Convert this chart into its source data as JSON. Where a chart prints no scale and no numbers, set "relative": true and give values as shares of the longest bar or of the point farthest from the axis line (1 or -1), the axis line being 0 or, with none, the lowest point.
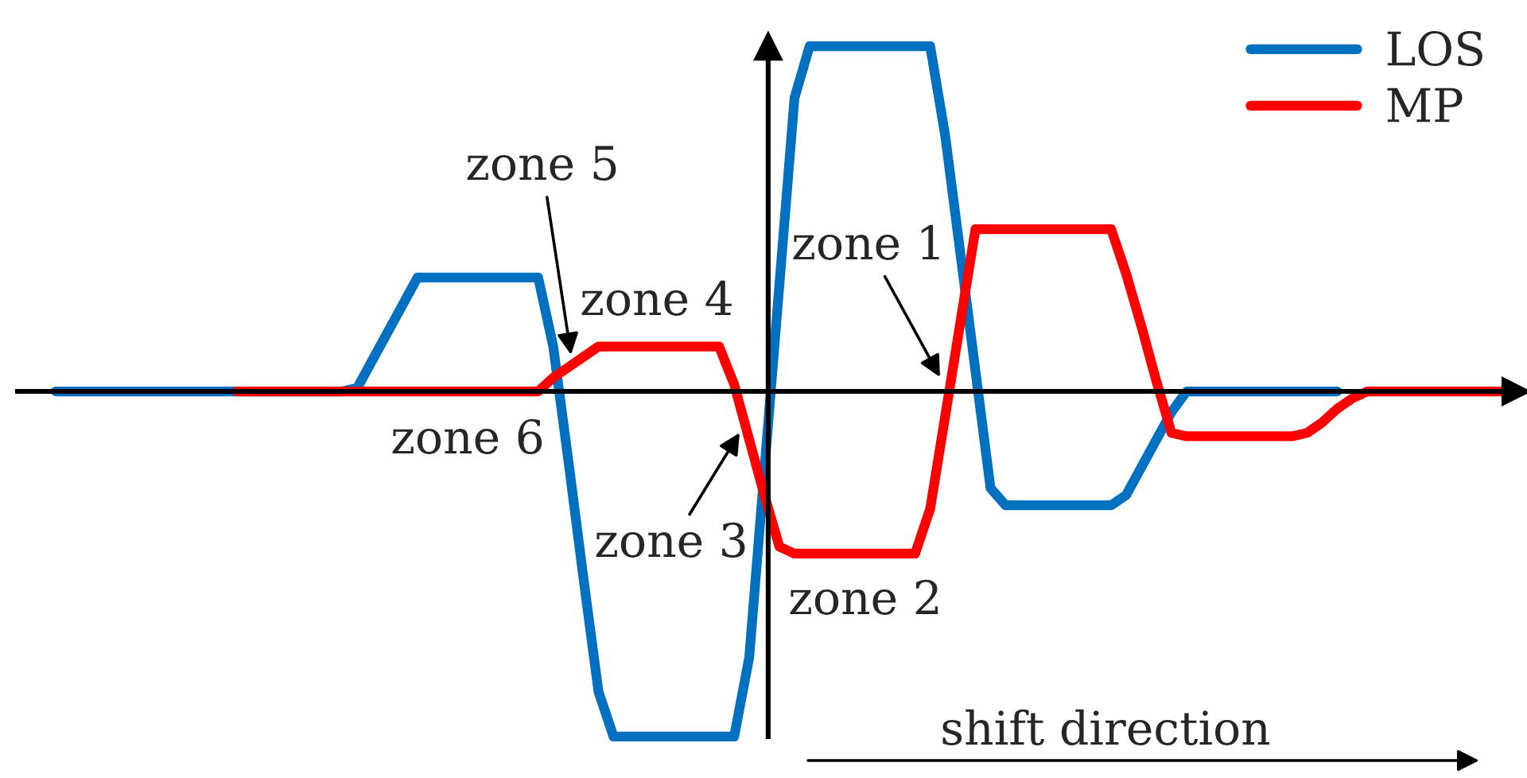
{
  "chart_data": {
    "type": "line",
    "relative": true,
    "legend": "top right",
    "categories": [
      null,
      null,
      null,
      null,
      null,
      null,
      null,
      null,
      null,
      null,
      null,
      null,
      null,
      null,
      null,
      null,
      null,
      null,
      null,
      null,
      null,
      null,
      null,
      null,
      null,
      null,
      null,
      null,
      null,
      null,
      null,
      null,
      null,
      null,
      null,
      null,
      null,
      null,
      null,
      null,
      null,
      null,
      null,
      null,
      null,
      null,
      null,
      null,
      null,
      null,
      null,
      null,
      null,
      null,
      null,
      null,
      null,
      null,
      null,
      null,
      null,
      null,
      null,
      null,
      null,
      null,
      null,
      null,
      null,
      null,
      null,
      null,
      null,
      null,
      null,
      null,
      null,
      null,
      null,
      null,
      null,
      null,
      null,
      null,
      null,
      null,
      null,
      null,
      null,
      null,
      null,
      null,
      null,
      null,
      null,
      null,
      null
    ],
    "series": [
      {
        "name": "LOS",
        "color": "#0070c0",
        "values": [
          0,
          0,
          0,
          0,
          0,
          0,
          0,
          0,
          0,
          0,
          0,
          0,
          0,
          0,
          0,
          0,
          0,
          0,
          0,
          0,
          0.01,
          0.09,
          0.17,
          0.25,
          0.33,
          0.33,
          0.33,
          0.33,
          0.33,
          0.33,
          0.33,
          0.33,
          0.33,
          0.13,
          -0.2,
          -0.54,
          -0.87,
          -1,
          -1,
          -1,
          -1,
          -1,
          -1,
          -1,
          -1,
          -1,
          -0.77,
          -0.23,
          0.31,
          0.85,
          1,
          1,
          1,
          1,
          1,
          1,
          1,
          1,
          1,
          0.74,
          0.4,
          0.06,
          -0.28,
          -0.33,
          -0.33,
          -0.33,
          -0.33,
          -0.33,
          -0.33,
          -0.33,
          -0.33,
          -0.3,
          -0.22,
          -0.14,
          -0.06,
          0,
          0,
          0,
          0,
          0,
          0,
          0,
          0,
          0,
          0,
          0,
          null,
          null,
          null,
          null,
          null,
          null,
          null,
          null,
          null,
          null,
          null
        ]
      },
      {
        "name": "MP",
        "color": "#ff0000",
        "values": [
          null,
          null,
          null,
          null,
          null,
          null,
          null,
          null,
          null,
          null,
          null,
          null,
          0,
          0,
          0,
          0,
          0,
          0,
          0,
          0,
          0,
          0,
          0,
          0,
          0,
          0,
          0,
          0,
          0,
          0,
          0,
          0,
          0,
          0.04,
          0.07,
          0.1,
          0.13,
          0.13,
          0.13,
          0.13,
          0.13,
          0.13,
          0.13,
          0.13,
          0.13,
          0.02,
          -0.14,
          -0.3,
          -0.45,
          -0.47,
          -0.47,
          -0.47,
          -0.47,
          -0.47,
          -0.47,
          -0.47,
          -0.47,
          -0.47,
          -0.34,
          -0.07,
          0.2,
          0.47,
          0.47,
          0.47,
          0.47,
          0.47,
          0.47,
          0.47,
          0.47,
          0.47,
          0.47,
          0.34,
          0.19,
          0.03,
          -0.12,
          -0.13,
          -0.13,
          -0.13,
          -0.13,
          -0.13,
          -0.13,
          -0.13,
          -0.13,
          -0.12,
          -0.09,
          -0.05,
          -0.02,
          0,
          0,
          0,
          0,
          0,
          0,
          0,
          0,
          0,
          0
        ]
      }
    ],
    "annotations": [
      "zone 1",
      "zone 2",
      "zone 3",
      "zone 4",
      "zone 5",
      "zone 6",
      "shift direction"
    ]
  }
}
